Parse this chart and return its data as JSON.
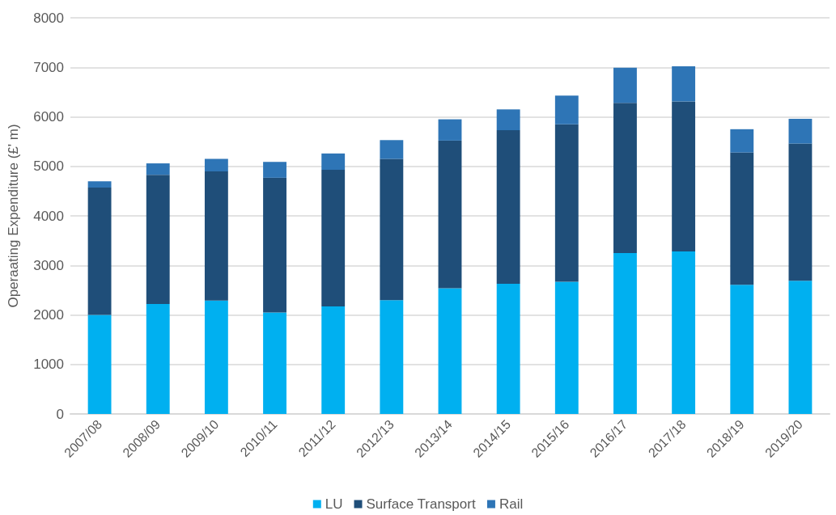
{
  "chart_data": {
    "type": "bar",
    "ylabel": "Operaating Expenditure (£' m)",
    "categories": [
      "2007/08",
      "2008/09",
      "2009/10",
      "2010/11",
      "2011/12",
      "2012/13",
      "2013/14",
      "2014/15",
      "2015/16",
      "2016/17",
      "2017/18",
      "2018/19",
      "2019/20"
    ],
    "series": [
      {
        "name": "LU",
        "color": "#00b0f0",
        "values": [
          2000,
          2220,
          2290,
          2050,
          2170,
          2300,
          2540,
          2630,
          2670,
          3250,
          3280,
          2610,
          2690
        ]
      },
      {
        "name": "Surface Transport",
        "color": "#1f4e79",
        "values": [
          2570,
          2610,
          2610,
          2720,
          2760,
          2850,
          2980,
          3100,
          3180,
          3030,
          3030,
          2670,
          2770
        ]
      },
      {
        "name": "Rail",
        "color": "#2e75b6",
        "values": [
          130,
          230,
          250,
          320,
          330,
          380,
          430,
          420,
          580,
          710,
          710,
          470,
          500
        ]
      }
    ],
    "stacked": true,
    "ylim": [
      0,
      8000
    ],
    "yticks": [
      0,
      1000,
      2000,
      3000,
      4000,
      5000,
      6000,
      7000,
      8000
    ],
    "grid": "y",
    "legend": "bottom"
  }
}
